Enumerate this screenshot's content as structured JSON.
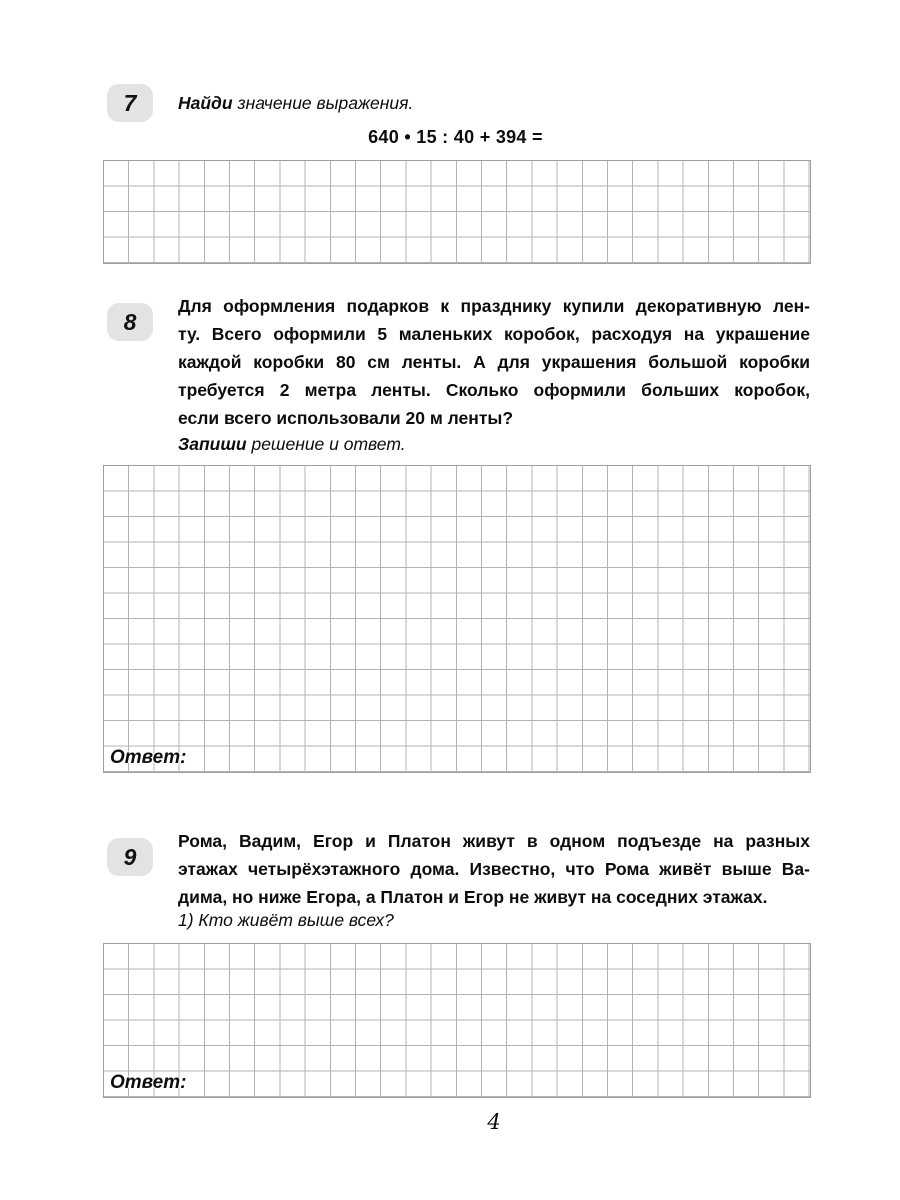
{
  "page": {
    "number": "4"
  },
  "tasks": {
    "t7": {
      "number": "7",
      "instruction_lead": "Найди",
      "instruction_rest": " значение выражения.",
      "expression": "640 • 15 : 40 + 394 =",
      "grid": {
        "cols": 28,
        "rows": 4
      }
    },
    "t8": {
      "number": "8",
      "text_lines": [
        "Для оформления подарков к празднику купили декоративную лен-",
        "ту. Всего оформили 5 маленьких коробок, расходуя на украшение",
        "каждой коробки 80 см ленты. А для украшения большой коробки",
        "требуется 2 метра ленты. Сколько оформили больших коробок,",
        "если всего использовали 20 м ленты?"
      ],
      "prompt_lead": "Запиши",
      "prompt_rest": " решение и ответ.",
      "grid": {
        "cols": 28,
        "rows": 12
      },
      "answer_label": "Ответ:"
    },
    "t9": {
      "number": "9",
      "text_lines": [
        "Рома, Вадим, Егор и Платон живут в одном подъезде на разных",
        "этажах четырёхэтажного дома. Известно, что Рома живёт выше Ва-",
        "дима, но ниже Егора, а Платон и Егор не живут на соседних этажах."
      ],
      "question": "1) Кто живёт выше всех?",
      "grid": {
        "cols": 28,
        "rows": 6
      },
      "answer_label": "Ответ:"
    }
  }
}
